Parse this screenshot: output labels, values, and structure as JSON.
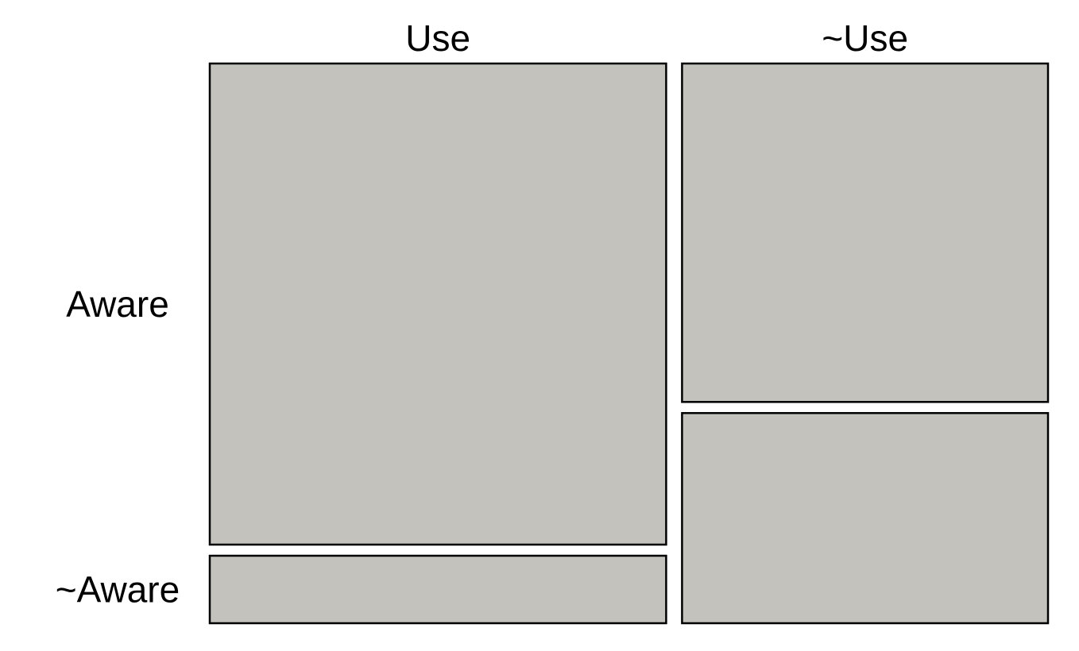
{
  "chart_data": {
    "type": "mosaic",
    "title": "",
    "column_variable_levels": [
      "Use",
      "~Use"
    ],
    "row_variable_levels": [
      "Aware",
      "~Aware"
    ],
    "column_proportions": [
      0.555,
      0.445
    ],
    "conditional_row_proportions": {
      "Use": {
        "Aware": 0.877,
        "~Aware": 0.123
      },
      "~Use": {
        "Aware": 0.617,
        "~Aware": 0.383
      }
    },
    "tiles": [
      {
        "column": "Use",
        "row": "Aware"
      },
      {
        "column": "Use",
        "row": "~Aware"
      },
      {
        "column": "~Use",
        "row": "Aware"
      },
      {
        "column": "~Use",
        "row": "~Aware"
      }
    ],
    "colors": {
      "tile_fill": "#c3c2bd",
      "tile_stroke": "#000000",
      "background": "#ffffff"
    }
  }
}
